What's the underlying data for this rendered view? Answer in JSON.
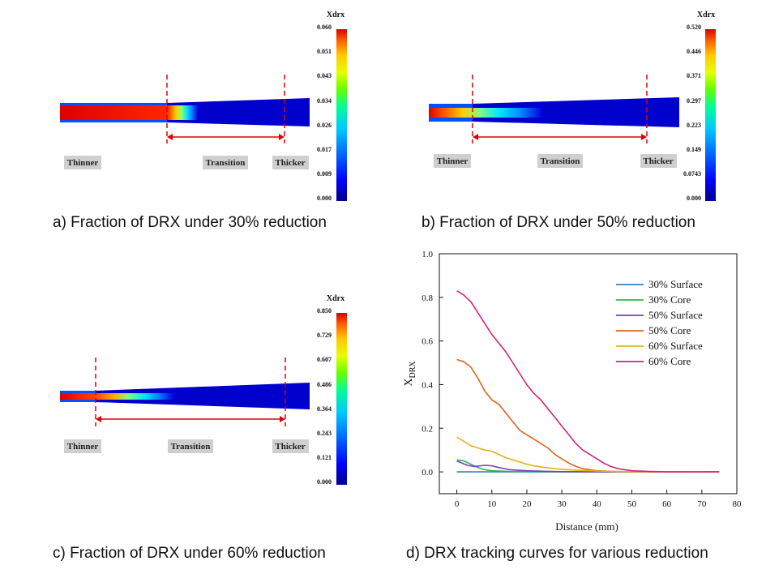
{
  "colors": {
    "colormap": [
      "#00008b",
      "#0000ff",
      "#0078ff",
      "#00c8ff",
      "#00ff96",
      "#64ff00",
      "#e6ff00",
      "#ffc800",
      "#ff6400",
      "#dc0000"
    ],
    "dashed_line": "#e00000",
    "label_bg": "#cfcfcf"
  },
  "panels": [
    {
      "caption": "a) Fraction of DRX under 30% reduction",
      "legend_title": "Xdrx",
      "legend_ticks": [
        "0.060",
        "0.051",
        "0.043",
        "0.034",
        "0.026",
        "0.017",
        "0.009",
        "0.000"
      ],
      "labels": {
        "thinner": "Thinner",
        "transition": "Transition",
        "thicker": "Thicker"
      }
    },
    {
      "caption": "b) Fraction of DRX under 50% reduction",
      "legend_title": "Xdrx",
      "legend_ticks": [
        "0.520",
        "0.446",
        "0.371",
        "0.297",
        "0.223",
        "0.149",
        "0.0743",
        "0.000"
      ],
      "labels": {
        "thinner": "Thinner",
        "transition": "Transition",
        "thicker": "Thicker"
      }
    },
    {
      "caption": "c) Fraction of DRX under 60% reduction",
      "legend_title": "Xdrx",
      "legend_ticks": [
        "0.850",
        "0.729",
        "0.607",
        "0.486",
        "0.364",
        "0.243",
        "0.121",
        "0.000"
      ],
      "labels": {
        "thinner": "Thinner",
        "transition": "Transition",
        "thicker": "Thicker"
      }
    }
  ],
  "chart_caption": "d) DRX tracking curves for various reduction",
  "chart_data": {
    "type": "line",
    "title": "",
    "xlabel": "Distance (mm)",
    "ylabel_main": "X",
    "ylabel_sub": "DRX",
    "xlim": [
      -5,
      80
    ],
    "ylim": [
      -0.1,
      1.0
    ],
    "x_ticks": [
      "0",
      "10",
      "20",
      "30",
      "40",
      "50",
      "60",
      "70",
      "80"
    ],
    "y_ticks": [
      "0.0",
      "0.2",
      "0.4",
      "0.6",
      "0.8",
      "1.0"
    ],
    "legend_position": "top-right",
    "series": [
      {
        "name": "30% Surface",
        "color": "#3a7fc4",
        "x": [
          0,
          10,
          20,
          30,
          40,
          50,
          60,
          75
        ],
        "y": [
          0,
          0,
          0,
          0,
          0,
          0,
          0,
          0
        ]
      },
      {
        "name": "30% Core",
        "color": "#2cb84a",
        "x": [
          0,
          2,
          4,
          6,
          8,
          10,
          15,
          20,
          30,
          50,
          75
        ],
        "y": [
          0.055,
          0.05,
          0.035,
          0.02,
          0.01,
          0.005,
          0.002,
          0.001,
          0,
          0,
          0
        ]
      },
      {
        "name": "50% Surface",
        "color": "#7a3fbf",
        "x": [
          0,
          3,
          5,
          8,
          10,
          12,
          15,
          20,
          25,
          30,
          40,
          50,
          75
        ],
        "y": [
          0.05,
          0.03,
          0.025,
          0.03,
          0.028,
          0.02,
          0.01,
          0.005,
          0.003,
          0.001,
          0,
          0,
          0
        ]
      },
      {
        "name": "50% Core",
        "color": "#e0641e",
        "x": [
          0,
          2,
          4,
          6,
          8,
          10,
          12,
          14,
          16,
          18,
          20,
          22,
          24,
          26,
          28,
          30,
          32,
          34,
          36,
          38,
          40,
          45,
          50,
          55,
          75
        ],
        "y": [
          0.515,
          0.505,
          0.48,
          0.43,
          0.37,
          0.33,
          0.31,
          0.27,
          0.23,
          0.19,
          0.17,
          0.15,
          0.13,
          0.11,
          0.08,
          0.06,
          0.04,
          0.025,
          0.015,
          0.01,
          0.005,
          0.002,
          0.001,
          0,
          0
        ]
      },
      {
        "name": "60% Surface",
        "color": "#e3b21b",
        "x": [
          0,
          2,
          4,
          6,
          8,
          10,
          12,
          14,
          16,
          18,
          20,
          22,
          25,
          28,
          30,
          35,
          40,
          45,
          50,
          75
        ],
        "y": [
          0.16,
          0.14,
          0.12,
          0.11,
          0.1,
          0.095,
          0.08,
          0.065,
          0.055,
          0.045,
          0.035,
          0.028,
          0.02,
          0.015,
          0.012,
          0.007,
          0.004,
          0.002,
          0.001,
          0
        ]
      },
      {
        "name": "60% Core",
        "color": "#d0247a",
        "x": [
          0,
          2,
          4,
          6,
          8,
          10,
          12,
          14,
          16,
          18,
          20,
          22,
          24,
          26,
          28,
          30,
          32,
          34,
          36,
          38,
          40,
          42,
          44,
          46,
          48,
          50,
          55,
          60,
          75
        ],
        "y": [
          0.83,
          0.81,
          0.78,
          0.73,
          0.68,
          0.63,
          0.59,
          0.55,
          0.5,
          0.45,
          0.4,
          0.36,
          0.33,
          0.29,
          0.25,
          0.21,
          0.17,
          0.13,
          0.1,
          0.08,
          0.06,
          0.04,
          0.025,
          0.015,
          0.01,
          0.005,
          0.002,
          0,
          0
        ]
      }
    ]
  }
}
